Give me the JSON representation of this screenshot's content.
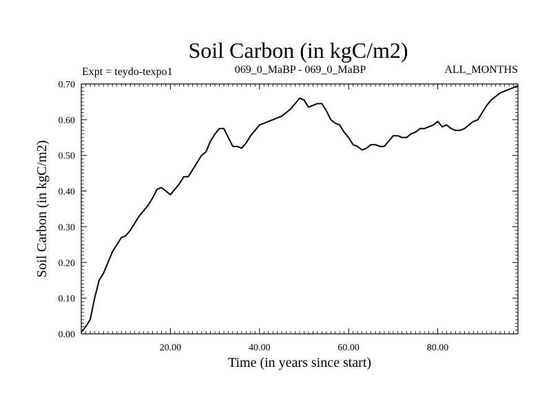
{
  "header": {
    "title": "Soil Carbon (in kgC/m2)",
    "left_label": "Expt = teydo-texpo1",
    "center_label": "069_0_MaBP - 069_0_MaBP",
    "right_label": "ALL_MONTHS"
  },
  "chart_data": {
    "type": "line",
    "title": "Soil Carbon (in kgC/m2)",
    "xlabel": "Time (in years since start)",
    "ylabel": "Soil Carbon (in kgC/m2)",
    "xlim": [
      0,
      98
    ],
    "ylim": [
      0,
      0.7
    ],
    "grid": false,
    "legend": "none",
    "x_ticks": [
      20,
      40,
      60,
      80
    ],
    "x_tick_labels": [
      "20.00",
      "40.00",
      "60.00",
      "80.00"
    ],
    "y_ticks": [
      0,
      0.1,
      0.2,
      0.3,
      0.4,
      0.5,
      0.6,
      0.7
    ],
    "y_tick_labels": [
      "0.00",
      "0.10",
      "0.20",
      "0.30",
      "0.40",
      "0.50",
      "0.60",
      "0.70"
    ],
    "series": [
      {
        "name": "Soil Carbon",
        "color": "#000000",
        "x": [
          0,
          1,
          2,
          3,
          4,
          5,
          6,
          7,
          8,
          9,
          10,
          11,
          12,
          13,
          14,
          15,
          16,
          17,
          18,
          19,
          20,
          21,
          22,
          23,
          24,
          25,
          26,
          27,
          28,
          29,
          30,
          31,
          32,
          33,
          34,
          35,
          36,
          37,
          38,
          39,
          40,
          41,
          42,
          43,
          44,
          45,
          46,
          47,
          48,
          49,
          50,
          51,
          52,
          53,
          54,
          55,
          56,
          57,
          58,
          59,
          60,
          61,
          62,
          63,
          64,
          65,
          66,
          67,
          68,
          69,
          70,
          71,
          72,
          73,
          74,
          75,
          76,
          77,
          78,
          79,
          80,
          81,
          82,
          83,
          84,
          85,
          86,
          87,
          88,
          89,
          90,
          91,
          92,
          93,
          94,
          95,
          96,
          97,
          98
        ],
        "values": [
          0.005,
          0.02,
          0.04,
          0.1,
          0.15,
          0.17,
          0.2,
          0.23,
          0.25,
          0.27,
          0.275,
          0.29,
          0.31,
          0.33,
          0.345,
          0.36,
          0.38,
          0.405,
          0.41,
          0.4,
          0.39,
          0.405,
          0.42,
          0.44,
          0.44,
          0.46,
          0.48,
          0.5,
          0.51,
          0.54,
          0.56,
          0.575,
          0.575,
          0.55,
          0.525,
          0.525,
          0.52,
          0.535,
          0.555,
          0.57,
          0.585,
          0.59,
          0.595,
          0.6,
          0.605,
          0.61,
          0.62,
          0.63,
          0.645,
          0.66,
          0.655,
          0.635,
          0.64,
          0.645,
          0.645,
          0.625,
          0.6,
          0.59,
          0.585,
          0.565,
          0.55,
          0.53,
          0.525,
          0.515,
          0.52,
          0.53,
          0.53,
          0.525,
          0.525,
          0.54,
          0.555,
          0.555,
          0.55,
          0.55,
          0.56,
          0.565,
          0.575,
          0.575,
          0.58,
          0.585,
          0.595,
          0.58,
          0.585,
          0.575,
          0.57,
          0.57,
          0.575,
          0.585,
          0.595,
          0.6,
          0.62,
          0.64,
          0.655,
          0.665,
          0.675,
          0.68,
          0.685,
          0.69,
          0.695
        ]
      }
    ]
  }
}
